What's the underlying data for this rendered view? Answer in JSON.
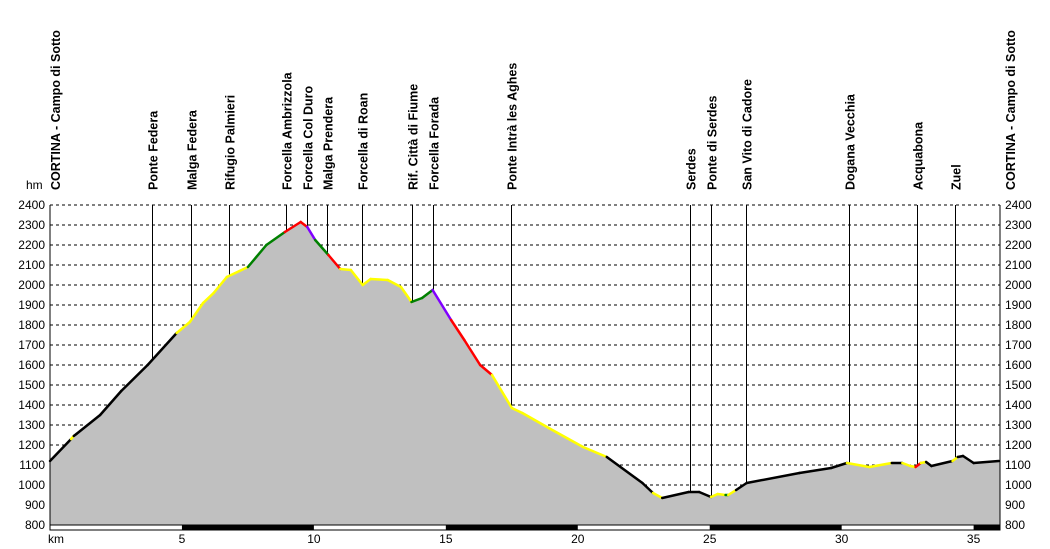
{
  "chart_data": {
    "type": "area",
    "title": "",
    "xlabel": "km",
    "ylabel": "hm",
    "xlim": [
      0,
      36
    ],
    "ylim": [
      800,
      2400
    ],
    "grid": true,
    "y_ticks": [
      800,
      900,
      1000,
      1100,
      1200,
      1300,
      1400,
      1500,
      1600,
      1700,
      1800,
      1900,
      2000,
      2100,
      2200,
      2300,
      2400
    ],
    "x_ticks": [
      5,
      10,
      15,
      20,
      25,
      30,
      35
    ],
    "colors": {
      "fill": "#c0c0c0",
      "k": "#000000",
      "y": "#ffff00",
      "g": "#008000",
      "r": "#ff0000",
      "p": "#8000ff"
    },
    "profile": [
      [
        0,
        1120,
        "k"
      ],
      [
        0.8,
        1230,
        "k"
      ],
      [
        0.9,
        1245,
        "y"
      ],
      [
        1.0,
        1255,
        "k"
      ],
      [
        1.9,
        1350,
        "k"
      ],
      [
        2.7,
        1470,
        "k"
      ],
      [
        3.7,
        1600,
        "k"
      ],
      [
        4.8,
        1760,
        "k"
      ],
      [
        5.3,
        1815,
        "y"
      ],
      [
        5.8,
        1910,
        "y"
      ],
      [
        6.2,
        1960,
        "y"
      ],
      [
        6.7,
        2040,
        "y"
      ],
      [
        7.5,
        2090,
        "y"
      ],
      [
        8.2,
        2200,
        "g"
      ],
      [
        8.9,
        2265,
        "g"
      ],
      [
        9.5,
        2315,
        "r"
      ],
      [
        9.75,
        2290,
        "r"
      ],
      [
        10.05,
        2225,
        "p"
      ],
      [
        10.55,
        2150,
        "g"
      ],
      [
        11.0,
        2080,
        "r"
      ],
      [
        11.4,
        2075,
        "y"
      ],
      [
        11.85,
        2000,
        "y"
      ],
      [
        12.15,
        2030,
        "y"
      ],
      [
        12.8,
        2025,
        "y"
      ],
      [
        13.3,
        1990,
        "y"
      ],
      [
        13.7,
        1915,
        "y"
      ],
      [
        14.1,
        1935,
        "g"
      ],
      [
        14.5,
        1975,
        "g"
      ],
      [
        15.2,
        1825,
        "p"
      ],
      [
        15.7,
        1725,
        "r"
      ],
      [
        16.3,
        1600,
        "r"
      ],
      [
        16.75,
        1550,
        "r"
      ],
      [
        17.5,
        1385,
        "y"
      ],
      [
        17.9,
        1360,
        "y"
      ],
      [
        18.9,
        1285,
        "y"
      ],
      [
        20.2,
        1190,
        "y"
      ],
      [
        21.1,
        1140,
        "y"
      ],
      [
        22.45,
        1010,
        "k"
      ],
      [
        22.85,
        960,
        "k"
      ],
      [
        23.2,
        935,
        "y"
      ],
      [
        24.2,
        965,
        "k"
      ],
      [
        24.6,
        965,
        "k"
      ],
      [
        25.05,
        940,
        "k"
      ],
      [
        25.3,
        955,
        "y"
      ],
      [
        25.6,
        950,
        "y"
      ],
      [
        25.7,
        950,
        "g"
      ],
      [
        26.0,
        975,
        "y"
      ],
      [
        26.4,
        1010,
        "k"
      ],
      [
        28.4,
        1060,
        "k"
      ],
      [
        29.6,
        1085,
        "k"
      ],
      [
        30.2,
        1110,
        "k"
      ],
      [
        31.05,
        1090,
        "y"
      ],
      [
        31.9,
        1110,
        "y"
      ],
      [
        32.3,
        1110,
        "k"
      ],
      [
        32.6,
        1095,
        "y"
      ],
      [
        32.8,
        1090,
        "y"
      ],
      [
        33.0,
        1110,
        "r"
      ],
      [
        33.2,
        1115,
        "y"
      ],
      [
        33.4,
        1095,
        "k"
      ],
      [
        34.2,
        1120,
        "k"
      ],
      [
        34.4,
        1140,
        "y"
      ],
      [
        34.6,
        1145,
        "k"
      ],
      [
        35.0,
        1110,
        "k"
      ],
      [
        35.95,
        1120,
        "k"
      ]
    ],
    "waypoints": [
      {
        "km": 0,
        "name": "CORTINA - Campo di Sotto",
        "line": false
      },
      {
        "km": 3.85,
        "name": "Ponte Federa",
        "line": true
      },
      {
        "km": 5.33,
        "name": "Malga Federa",
        "line": true
      },
      {
        "km": 6.77,
        "name": "Rifugio Palmieri",
        "line": true
      },
      {
        "km": 8.96,
        "name": "Forcella Ambrizzola",
        "line": true
      },
      {
        "km": 9.72,
        "name": "Forcella Col Duro",
        "line": true
      },
      {
        "km": 10.51,
        "name": "Malga Prendera",
        "line": true
      },
      {
        "km": 11.83,
        "name": "Forcella di Roan",
        "line": true
      },
      {
        "km": 13.72,
        "name": "Rif. Città di Fiume",
        "line": true
      },
      {
        "km": 14.52,
        "name": "Forcella Forada",
        "line": true
      },
      {
        "km": 17.47,
        "name": "Ponte Intrà les Aghes",
        "line": true
      },
      {
        "km": 24.27,
        "name": "Serdes",
        "line": true
      },
      {
        "km": 25.03,
        "name": "Ponte di Serdes",
        "line": true
      },
      {
        "km": 26.39,
        "name": "San Vito di Cadore",
        "line": true
      },
      {
        "km": 30.28,
        "name": "Dogana Vecchia",
        "line": true
      },
      {
        "km": 32.85,
        "name": "Acquabona",
        "line": true
      },
      {
        "km": 34.29,
        "name": "Zuel",
        "line": true
      },
      {
        "km": 36,
        "name": "CORTINA - Campo di Sotto",
        "line": false
      }
    ]
  }
}
